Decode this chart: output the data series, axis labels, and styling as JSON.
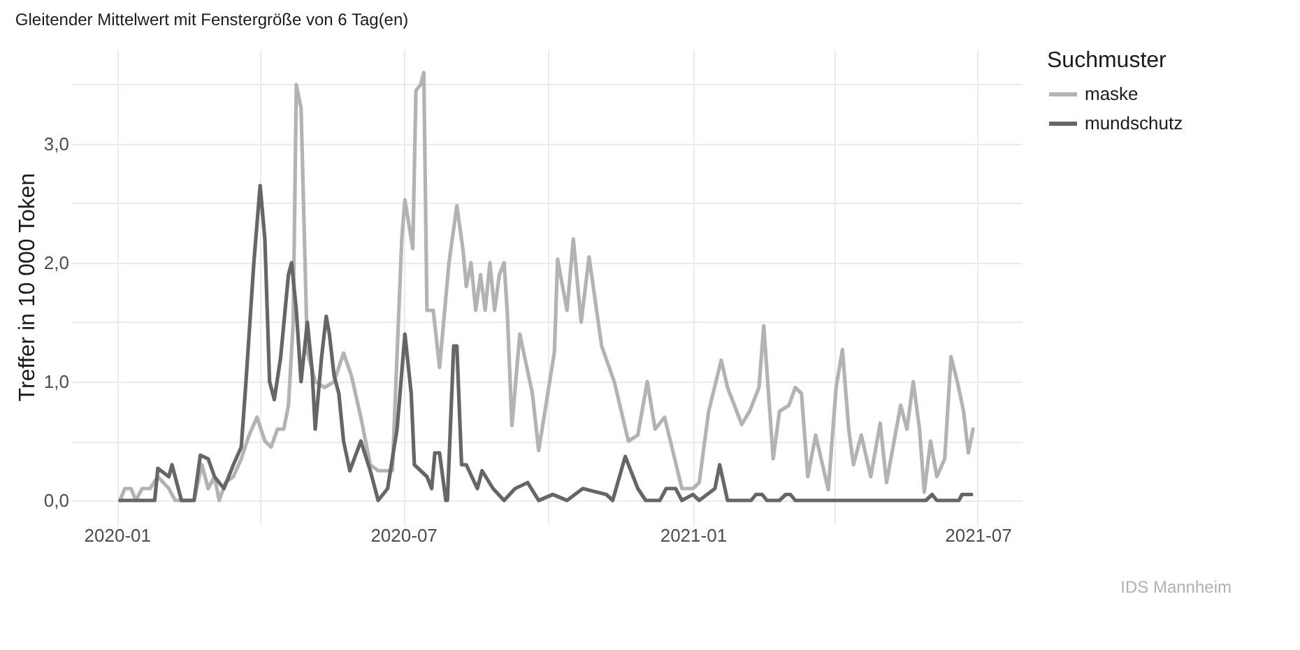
{
  "chart_data": {
    "type": "line",
    "title": "Gleitender Mittelwert mit Fenstergröße von 6 Tag(en)",
    "ylabel": "Treffer in 10 000 Token",
    "legend_title": "Suchmuster",
    "legend": "right",
    "grid": true,
    "line_style": "solid",
    "marker": "none",
    "xlim": [
      "2019-12-03",
      "2021-07-29"
    ],
    "xticks": [
      {
        "value": "2020-01-01",
        "label": "2020-01"
      },
      {
        "value": "2020-04-01",
        "label": null
      },
      {
        "value": "2020-07-01",
        "label": "2020-07"
      },
      {
        "value": "2020-10-01",
        "label": null
      },
      {
        "value": "2021-01-01",
        "label": "2021-01"
      },
      {
        "value": "2021-04-01",
        "label": null
      },
      {
        "value": "2021-07-01",
        "label": "2021-07"
      }
    ],
    "ylim": [
      -0.2,
      3.8
    ],
    "yticks": [
      {
        "value": 0,
        "label": "0,0"
      },
      {
        "value": 0.5,
        "label": null
      },
      {
        "value": 1,
        "label": "1,0"
      },
      {
        "value": 1.5,
        "label": null
      },
      {
        "value": 2,
        "label": "2,0"
      },
      {
        "value": 2.5,
        "label": null
      },
      {
        "value": 3,
        "label": "3,0"
      },
      {
        "value": 3.5,
        "label": null
      }
    ],
    "annotations": [
      "IDS Mannheim"
    ],
    "series": [
      {
        "name": "maske",
        "color": "#b3b3b3",
        "x": [
          "2020-01-03",
          "2020-01-06",
          "2020-01-10",
          "2020-01-13",
          "2020-01-17",
          "2020-01-22",
          "2020-01-27",
          "2020-02-03",
          "2020-02-07",
          "2020-02-19",
          "2020-02-24",
          "2020-02-28",
          "2020-03-03",
          "2020-03-06",
          "2020-03-10",
          "2020-03-15",
          "2020-03-20",
          "2020-03-25",
          "2020-03-30",
          "2020-04-04",
          "2020-04-08",
          "2020-04-12",
          "2020-04-16",
          "2020-04-19",
          "2020-04-22",
          "2020-04-24",
          "2020-04-27",
          "2020-05-01",
          "2020-05-06",
          "2020-05-12",
          "2020-05-18",
          "2020-05-24",
          "2020-05-29",
          "2020-06-04",
          "2020-06-10",
          "2020-06-15",
          "2020-06-24",
          "2020-06-30",
          "2020-07-02",
          "2020-07-07",
          "2020-07-09",
          "2020-07-12",
          "2020-07-14",
          "2020-07-16",
          "2020-07-20",
          "2020-07-24",
          "2020-07-30",
          "2020-08-04",
          "2020-08-08",
          "2020-08-10",
          "2020-08-13",
          "2020-08-16",
          "2020-08-19",
          "2020-08-22",
          "2020-08-25",
          "2020-08-28",
          "2020-08-31",
          "2020-09-03",
          "2020-09-05",
          "2020-09-08",
          "2020-09-13",
          "2020-09-21",
          "2020-09-25",
          "2020-10-05",
          "2020-10-07",
          "2020-10-13",
          "2020-10-17",
          "2020-10-22",
          "2020-10-27",
          "2020-11-04",
          "2020-11-12",
          "2020-11-21",
          "2020-11-27",
          "2020-12-03",
          "2020-12-08",
          "2020-12-14",
          "2020-12-25",
          "2021-01-01",
          "2021-01-05",
          "2021-01-11",
          "2021-01-19",
          "2021-01-23",
          "2021-02-01",
          "2021-02-06",
          "2021-02-12",
          "2021-02-15",
          "2021-02-21",
          "2021-02-25",
          "2021-03-03",
          "2021-03-07",
          "2021-03-11",
          "2021-03-15",
          "2021-03-20",
          "2021-03-28",
          "2021-04-02",
          "2021-04-06",
          "2021-04-10",
          "2021-04-13",
          "2021-04-18",
          "2021-04-24",
          "2021-04-30",
          "2021-05-04",
          "2021-05-13",
          "2021-05-17",
          "2021-05-21",
          "2021-05-25",
          "2021-05-28",
          "2021-06-01",
          "2021-06-05",
          "2021-06-10",
          "2021-06-14",
          "2021-06-18",
          "2021-06-22",
          "2021-06-25",
          "2021-06-28"
        ],
        "values": [
          0,
          0.1,
          0.1,
          0,
          0.1,
          0.1,
          0.2,
          0.1,
          0,
          0,
          0.3,
          0.1,
          0.2,
          0,
          0.15,
          0.2,
          0.35,
          0.55,
          0.7,
          0.5,
          0.45,
          0.6,
          0.6,
          0.8,
          1.5,
          3.5,
          3.3,
          1.25,
          1.0,
          0.95,
          1.0,
          1.24,
          1.05,
          0.7,
          0.3,
          0.25,
          0.25,
          2.2,
          2.53,
          2.12,
          3.45,
          3.5,
          3.6,
          1.6,
          1.6,
          1.12,
          2.0,
          2.48,
          2.1,
          1.8,
          2.0,
          1.6,
          1.9,
          1.6,
          2.0,
          1.6,
          1.9,
          2.0,
          1.6,
          0.63,
          1.4,
          0.9,
          0.42,
          1.25,
          2.03,
          1.6,
          2.2,
          1.5,
          2.05,
          1.3,
          1.0,
          0.5,
          0.55,
          1.0,
          0.6,
          0.7,
          0.1,
          0.1,
          0.15,
          0.75,
          1.18,
          0.95,
          0.64,
          0.75,
          0.95,
          1.47,
          0.35,
          0.75,
          0.8,
          0.95,
          0.9,
          0.2,
          0.55,
          0.09,
          0.95,
          1.27,
          0.6,
          0.3,
          0.55,
          0.2,
          0.65,
          0.15,
          0.8,
          0.6,
          1.0,
          0.6,
          0.07,
          0.5,
          0.2,
          0.35,
          1.21,
          1.0,
          0.75,
          0.4,
          0.6
        ]
      },
      {
        "name": "mundschutz",
        "color": "#666666",
        "x": [
          "2020-01-03",
          "2020-01-25",
          "2020-01-27",
          "2020-02-03",
          "2020-02-05",
          "2020-02-09",
          "2020-02-11",
          "2020-02-19",
          "2020-02-23",
          "2020-02-28",
          "2020-03-03",
          "2020-03-09",
          "2020-03-15",
          "2020-03-20",
          "2020-03-23",
          "2020-03-28",
          "2020-04-01",
          "2020-04-04",
          "2020-04-07",
          "2020-04-10",
          "2020-04-14",
          "2020-04-19",
          "2020-04-21",
          "2020-04-24",
          "2020-04-27",
          "2020-05-01",
          "2020-05-04",
          "2020-05-06",
          "2020-05-10",
          "2020-05-13",
          "2020-05-15",
          "2020-05-18",
          "2020-05-21",
          "2020-05-24",
          "2020-05-28",
          "2020-06-04",
          "2020-06-10",
          "2020-06-15",
          "2020-06-21",
          "2020-06-27",
          "2020-07-02",
          "2020-07-06",
          "2020-07-08",
          "2020-07-16",
          "2020-07-19",
          "2020-07-21",
          "2020-07-24",
          "2020-07-28",
          "2020-07-29",
          "2020-08-02",
          "2020-08-04",
          "2020-08-07",
          "2020-08-10",
          "2020-08-17",
          "2020-08-20",
          "2020-08-27",
          "2020-09-03",
          "2020-09-10",
          "2020-09-18",
          "2020-09-25",
          "2020-10-04",
          "2020-10-13",
          "2020-10-23",
          "2020-11-07",
          "2020-11-11",
          "2020-11-19",
          "2020-11-27",
          "2020-12-02",
          "2020-12-11",
          "2020-12-15",
          "2020-12-21",
          "2020-12-25",
          "2021-01-01",
          "2021-01-05",
          "2021-01-15",
          "2021-01-18",
          "2021-01-23",
          "2021-02-07",
          "2021-02-10",
          "2021-02-14",
          "2021-02-17",
          "2021-02-25",
          "2021-03-01",
          "2021-03-04",
          "2021-03-07",
          "2021-05-29",
          "2021-06-02",
          "2021-06-05",
          "2021-06-19",
          "2021-06-21",
          "2021-06-27"
        ],
        "values": [
          0,
          0,
          0.27,
          0.2,
          0.3,
          0.1,
          0,
          0,
          0.38,
          0.35,
          0.2,
          0.1,
          0.3,
          0.45,
          1.0,
          2.0,
          2.65,
          2.2,
          1.0,
          0.85,
          1.2,
          1.9,
          2.0,
          1.6,
          1.0,
          1.5,
          1.1,
          0.6,
          1.2,
          1.55,
          1.4,
          1.05,
          0.9,
          0.5,
          0.25,
          0.5,
          0.25,
          0,
          0.1,
          0.6,
          1.4,
          0.9,
          0.3,
          0.2,
          0.1,
          0.4,
          0.4,
          0,
          0,
          1.3,
          1.3,
          0.3,
          0.3,
          0.1,
          0.25,
          0.1,
          0,
          0.1,
          0.15,
          0,
          0.05,
          0,
          0.1,
          0.05,
          0,
          0.37,
          0.1,
          0,
          0,
          0.1,
          0.1,
          0,
          0.05,
          0,
          0.1,
          0.3,
          0,
          0,
          0.05,
          0.05,
          0,
          0,
          0.05,
          0.05,
          0,
          0,
          0.05,
          0,
          0,
          0.05,
          0.05
        ]
      }
    ]
  }
}
